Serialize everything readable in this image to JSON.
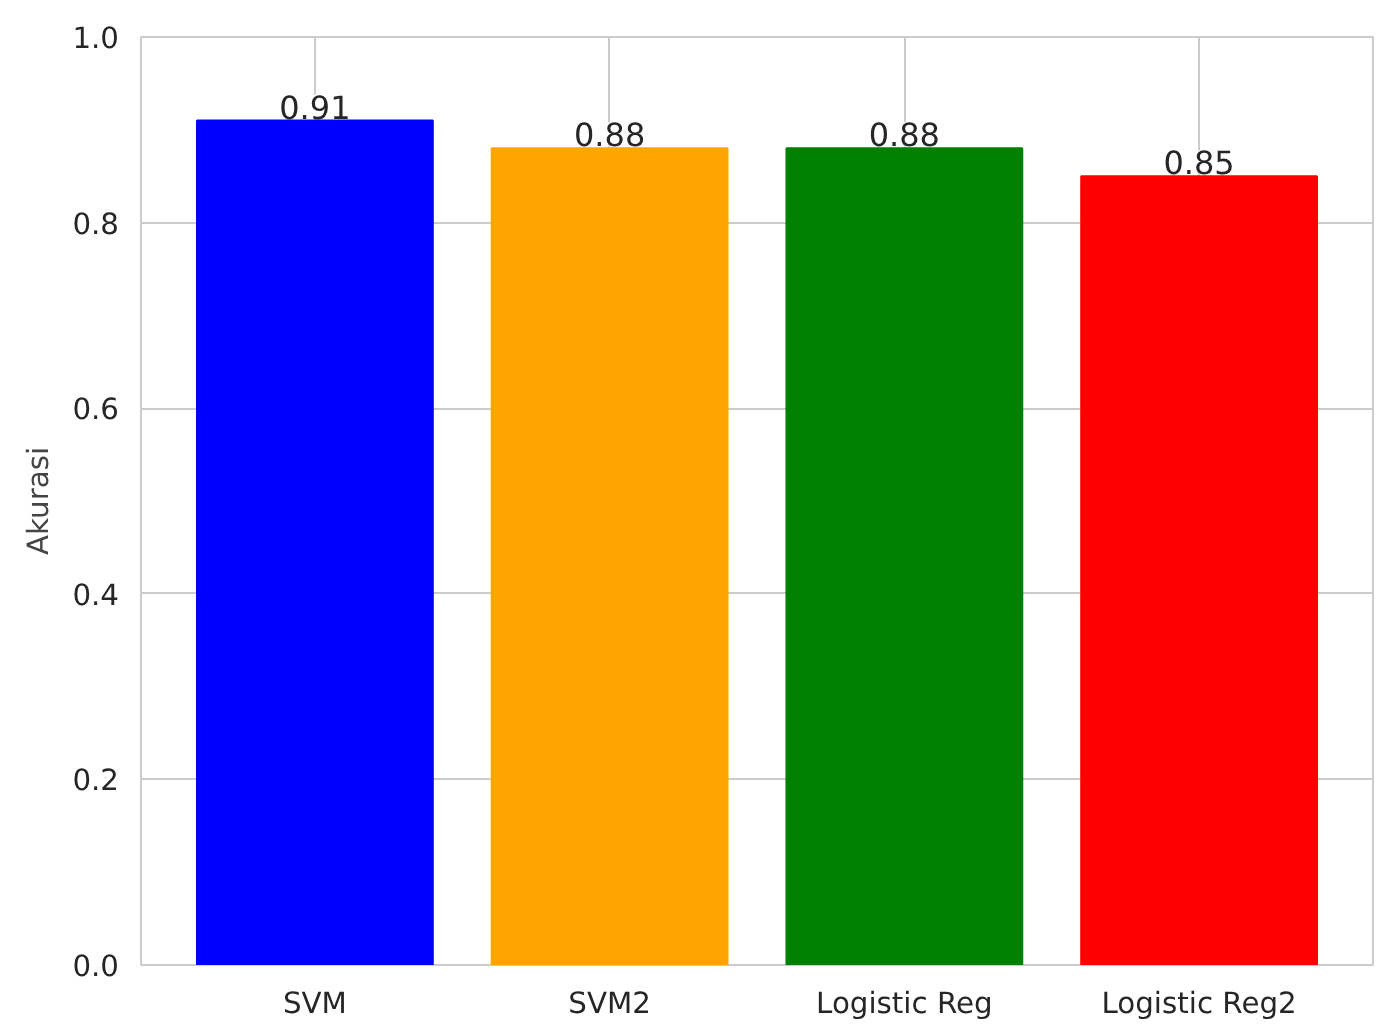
{
  "chart_data": {
    "type": "bar",
    "ylabel": "Akurasi",
    "categories": [
      "SVM",
      "SVM2",
      "Logistic Reg",
      "Logistic Reg2"
    ],
    "values": [
      0.91,
      0.88,
      0.88,
      0.85
    ],
    "colors": [
      "#0000ff",
      "#ffa500",
      "#008000",
      "#ff0000"
    ],
    "ylim": [
      0,
      1
    ],
    "yticks": [
      {
        "value": 0,
        "label": "0.0"
      },
      {
        "value": 0.2,
        "label": "0.2"
      },
      {
        "value": 0.4,
        "label": "0.4"
      },
      {
        "value": 0.6,
        "label": "0.6"
      },
      {
        "value": 0.8,
        "label": "0.8"
      },
      {
        "value": 1,
        "label": "1.0"
      }
    ],
    "grid": true,
    "data_labels": true
  }
}
